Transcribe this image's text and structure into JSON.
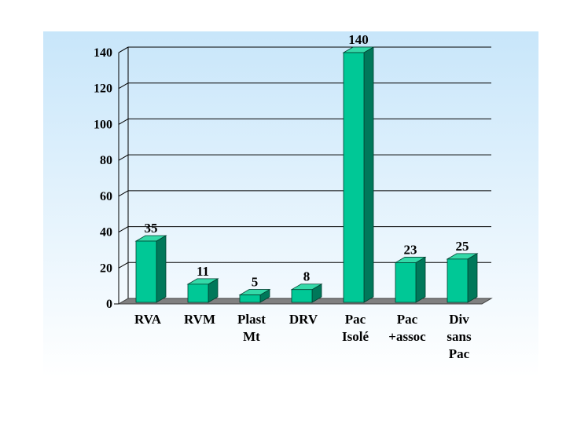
{
  "chart_data": {
    "type": "bar",
    "categories": [
      [
        "RVA"
      ],
      [
        "RVM"
      ],
      [
        "Plast",
        "Mt"
      ],
      [
        "DRV"
      ],
      [
        "Pac",
        "Isolé"
      ],
      [
        "Pac",
        "+assoc"
      ],
      [
        "Div",
        "sans",
        "Pac"
      ]
    ],
    "values": [
      35,
      11,
      5,
      8,
      140,
      23,
      25
    ],
    "title": "",
    "xlabel": "",
    "ylabel": "",
    "ylim": [
      0,
      140
    ],
    "yticks": [
      0,
      20,
      40,
      60,
      80,
      100,
      120,
      140
    ],
    "grid": true,
    "legend": "none",
    "colors": {
      "background_top": "#c8e6fa",
      "background_bottom": "#ffffff",
      "bar_front": "#00c896",
      "bar_top": "#33d9a8",
      "bar_side": "#00785a",
      "floor": "#808080",
      "gridline": "#000000"
    }
  }
}
